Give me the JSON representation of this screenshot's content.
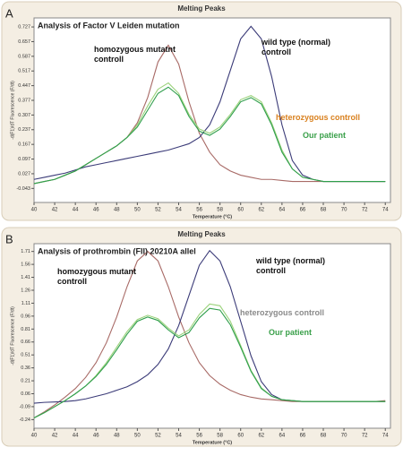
{
  "chart_data": [
    {
      "type": "line",
      "panel_label": "A",
      "header": "Melting Peaks",
      "title": "Analysis of Factor V Leiden mutation",
      "xlabel": "Temperature (°C)",
      "ylabel": "-d(F1)/dT Fluorescence (F/dt)",
      "x": [
        40,
        41,
        42,
        43,
        44,
        45,
        46,
        47,
        48,
        49,
        50,
        51,
        52,
        53,
        54,
        55,
        56,
        57,
        58,
        59,
        60,
        61,
        62,
        63,
        64,
        65,
        66,
        67,
        68,
        69,
        70,
        71,
        72,
        73,
        74
      ],
      "xlim": [
        40,
        74.5
      ],
      "xticks": [
        40,
        42,
        44,
        46,
        48,
        50,
        52,
        54,
        56,
        58,
        60,
        62,
        64,
        66,
        68,
        70,
        72,
        74
      ],
      "ylim": [
        -0.11,
        0.77
      ],
      "yticks": [
        -0.043,
        0.027,
        0.097,
        0.167,
        0.237,
        0.307,
        0.377,
        0.447,
        0.517,
        0.587,
        0.657,
        0.727
      ],
      "series": [
        {
          "name": "homozygous mutatnt controll",
          "color": "#a86a66",
          "label_color": "#111111",
          "values": [
            -0.02,
            -0.01,
            0,
            0.02,
            0.04,
            0.07,
            0.1,
            0.13,
            0.16,
            0.2,
            0.27,
            0.39,
            0.56,
            0.64,
            0.55,
            0.37,
            0.22,
            0.13,
            0.07,
            0.04,
            0.02,
            0.01,
            0,
            0,
            -0.005,
            -0.01,
            -0.01,
            -0.01,
            -0.01,
            -0.01,
            -0.01,
            -0.01,
            -0.01,
            -0.01,
            -0.01
          ]
        },
        {
          "name": "wild type (normal) controll",
          "color": "#3b3b78",
          "label_color": "#111111",
          "values": [
            0,
            0.01,
            0.02,
            0.03,
            0.045,
            0.06,
            0.07,
            0.08,
            0.09,
            0.1,
            0.11,
            0.12,
            0.13,
            0.14,
            0.155,
            0.17,
            0.2,
            0.26,
            0.37,
            0.52,
            0.67,
            0.73,
            0.67,
            0.49,
            0.26,
            0.09,
            0.02,
            0,
            -0.01,
            -0.01,
            -0.01,
            -0.01,
            -0.01,
            -0.01,
            -0.01
          ]
        },
        {
          "name": "heterozygous controll",
          "color": "#9ad27a",
          "label_color": "#d9801e",
          "values": [
            -0.02,
            -0.01,
            0,
            0.02,
            0.04,
            0.07,
            0.1,
            0.13,
            0.16,
            0.2,
            0.26,
            0.35,
            0.43,
            0.46,
            0.41,
            0.31,
            0.24,
            0.22,
            0.25,
            0.31,
            0.38,
            0.4,
            0.37,
            0.27,
            0.14,
            0.05,
            0.01,
            0,
            -0.01,
            -0.01,
            -0.01,
            -0.01,
            -0.01,
            -0.01,
            -0.01
          ]
        },
        {
          "name": "Our patient",
          "color": "#2f9e4c",
          "label_color": "#3aa04a",
          "values": [
            -0.02,
            -0.01,
            0,
            0.02,
            0.04,
            0.07,
            0.1,
            0.13,
            0.16,
            0.2,
            0.25,
            0.33,
            0.41,
            0.44,
            0.4,
            0.3,
            0.23,
            0.21,
            0.24,
            0.3,
            0.37,
            0.39,
            0.36,
            0.26,
            0.13,
            0.05,
            0.01,
            0,
            -0.01,
            -0.01,
            -0.01,
            -0.01,
            -0.01,
            -0.01,
            -0.01
          ]
        }
      ]
    },
    {
      "type": "line",
      "panel_label": "B",
      "header": "Melting Peaks",
      "title": "Analysis of prothrombin (FII) 20210A allel",
      "xlabel": "Temperature (°C)",
      "ylabel": "-d(F1)/dT Fluorescence (F/dt)",
      "x": [
        40,
        41,
        42,
        43,
        44,
        45,
        46,
        47,
        48,
        49,
        50,
        51,
        52,
        53,
        54,
        55,
        56,
        57,
        58,
        59,
        60,
        61,
        62,
        63,
        64,
        65,
        66,
        67,
        68,
        69,
        70,
        71,
        72,
        73,
        74
      ],
      "xlim": [
        40,
        74.5
      ],
      "xticks": [
        40,
        42,
        44,
        46,
        48,
        50,
        52,
        54,
        56,
        58,
        60,
        62,
        64,
        66,
        68,
        70,
        72,
        74
      ],
      "ylim": [
        -0.34,
        1.8
      ],
      "yticks": [
        1.71,
        1.56,
        1.41,
        1.26,
        1.11,
        0.96,
        0.81,
        0.66,
        0.51,
        0.36,
        0.21,
        0.06,
        -0.09,
        -0.24
      ],
      "series": [
        {
          "name": "homozygous mutant controll",
          "color": "#a86a66",
          "label_color": "#111111",
          "values": [
            -0.22,
            -0.15,
            -0.07,
            0.02,
            0.12,
            0.25,
            0.42,
            0.65,
            0.95,
            1.3,
            1.6,
            1.71,
            1.6,
            1.3,
            0.95,
            0.65,
            0.42,
            0.27,
            0.17,
            0.1,
            0.05,
            0.02,
            0,
            -0.01,
            -0.02,
            -0.03,
            -0.03,
            -0.03,
            -0.03,
            -0.03,
            -0.03,
            -0.03,
            -0.03,
            -0.03,
            -0.02
          ]
        },
        {
          "name": "wild type (normal) controll",
          "color": "#3b3b78",
          "label_color": "#111111",
          "values": [
            -0.05,
            -0.04,
            -0.035,
            -0.03,
            -0.02,
            0,
            0.03,
            0.06,
            0.1,
            0.14,
            0.2,
            0.28,
            0.4,
            0.58,
            0.85,
            1.2,
            1.55,
            1.72,
            1.6,
            1.3,
            0.9,
            0.5,
            0.2,
            0.05,
            -0.01,
            -0.02,
            -0.03,
            -0.03,
            -0.03,
            -0.03,
            -0.03,
            -0.03,
            -0.03,
            -0.03,
            -0.03
          ]
        },
        {
          "name": "heterozygous controll",
          "color": "#9ad27a",
          "label_color": "#8a8a8a",
          "values": [
            -0.22,
            -0.16,
            -0.09,
            -0.02,
            0.06,
            0.15,
            0.27,
            0.42,
            0.6,
            0.78,
            0.92,
            0.97,
            0.93,
            0.82,
            0.73,
            0.8,
            0.98,
            1.1,
            1.08,
            0.9,
            0.62,
            0.33,
            0.13,
            0.03,
            -0.01,
            -0.02,
            -0.03,
            -0.03,
            -0.03,
            -0.03,
            -0.03,
            -0.03,
            -0.03,
            -0.03,
            -0.03
          ]
        },
        {
          "name": "Our patient",
          "color": "#2f9e4c",
          "label_color": "#3aa04a",
          "values": [
            -0.22,
            -0.16,
            -0.09,
            -0.02,
            0.06,
            0.15,
            0.26,
            0.4,
            0.57,
            0.75,
            0.9,
            0.95,
            0.91,
            0.8,
            0.71,
            0.77,
            0.94,
            1.05,
            1.03,
            0.86,
            0.6,
            0.32,
            0.12,
            0.03,
            -0.01,
            -0.02,
            -0.03,
            -0.03,
            -0.03,
            -0.03,
            -0.03,
            -0.03,
            -0.03,
            -0.03,
            -0.03
          ]
        }
      ]
    }
  ]
}
